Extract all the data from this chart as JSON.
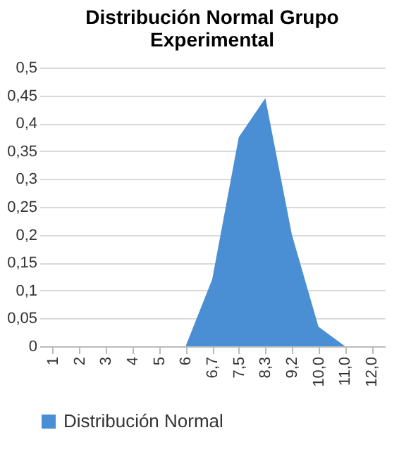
{
  "chart_data": {
    "type": "area",
    "title": "Distribución Normal Grupo Experimental",
    "categories": [
      "1",
      "2",
      "3",
      "4",
      "5",
      "6",
      "6,7",
      "7,5",
      "8,3",
      "9,2",
      "10,0",
      "11,0",
      "12,0"
    ],
    "series": [
      {
        "name": "Distribución Normal",
        "color": "#4a8ed4",
        "values": [
          0,
          0,
          0,
          0,
          0,
          0,
          0.12,
          0.375,
          0.445,
          0.2,
          0.035,
          0,
          null
        ]
      }
    ],
    "ylim": [
      0,
      0.5
    ],
    "yticks": [
      {
        "value": 0,
        "label": "0"
      },
      {
        "value": 0.05,
        "label": "0,05"
      },
      {
        "value": 0.1,
        "label": "0,1"
      },
      {
        "value": 0.15,
        "label": "0,15"
      },
      {
        "value": 0.2,
        "label": "0,2"
      },
      {
        "value": 0.25,
        "label": "0,25"
      },
      {
        "value": 0.3,
        "label": "0,3"
      },
      {
        "value": 0.35,
        "label": "0,35"
      },
      {
        "value": 0.4,
        "label": "0,4"
      },
      {
        "value": 0.45,
        "label": "0,45"
      },
      {
        "value": 0.5,
        "label": "0,5"
      }
    ],
    "grid": "y",
    "legend": "bottom"
  }
}
